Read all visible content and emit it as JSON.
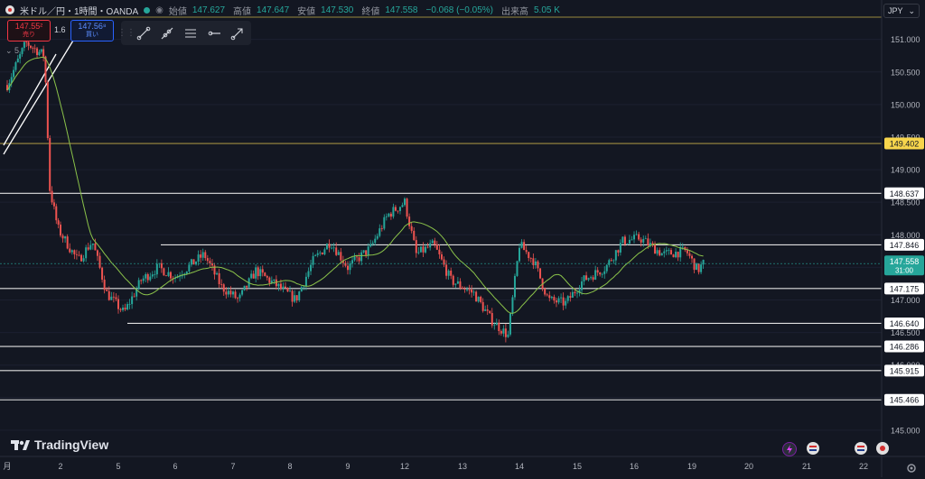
{
  "header": {
    "symbol": "米ドル／円・1時間・OANDA",
    "ohlc": [
      {
        "label": "始値",
        "value": "147.627"
      },
      {
        "label": "高値",
        "value": "147.647"
      },
      {
        "label": "安値",
        "value": "147.530"
      },
      {
        "label": "終値",
        "value": "147.558"
      },
      {
        "label": "",
        "value": "−0.068 (−0.05%)"
      },
      {
        "label": "出来高",
        "value": "5.05 K"
      }
    ]
  },
  "trade": {
    "sell_price": "147.55²",
    "sell_label": "売り",
    "spread": "1.6",
    "buy_price": "147.56⁸",
    "buy_label": "買い"
  },
  "ma_legend": "⌄ 5",
  "drawing_toolbar": {
    "tools": [
      "trend-line-icon",
      "extended-line-icon",
      "parallel-channel-icon",
      "horizontal-ray-icon",
      "arrow-line-icon"
    ]
  },
  "currency": "JPY",
  "brand": "TradingView",
  "colors": {
    "background": "#131722",
    "up": "#26a69a",
    "down": "#ef5350",
    "ma": "#8bc34a",
    "level_line": "#e0e0e0",
    "yellow_line": "#c9b24a",
    "current_price_bg": "#26a69a"
  },
  "chart_data": {
    "type": "candlestick",
    "symbol": "USDJPY",
    "timeframe": "1H",
    "ylim": [
      144.68,
      151.3
    ],
    "y_ticks": [
      "151.000",
      "150.500",
      "150.000",
      "149.500",
      "149.000",
      "148.500",
      "148.000",
      "147.500",
      "147.000",
      "146.500",
      "146.000",
      "145.500",
      "145.000"
    ],
    "x_ticks": [
      "月",
      "2",
      "5",
      "6",
      "7",
      "8",
      "9",
      "12",
      "13",
      "14",
      "15",
      "16",
      "19",
      "20",
      "21",
      "22"
    ],
    "current_price": "147.558",
    "countdown": "31:00",
    "horizontal_levels": [
      {
        "price": 149.402,
        "label": "149.402",
        "style": "yellow"
      },
      {
        "price": 148.637,
        "label": "148.637",
        "style": "white"
      },
      {
        "price": 147.846,
        "label": "147.846",
        "style": "white"
      },
      {
        "price": 147.175,
        "label": "147.175",
        "style": "white"
      },
      {
        "price": 146.64,
        "label": "146.640",
        "style": "white"
      },
      {
        "price": 146.286,
        "label": "146.286",
        "style": "white"
      },
      {
        "price": 145.915,
        "label": "145.915",
        "style": "white"
      },
      {
        "price": 145.466,
        "label": "145.466",
        "style": "white"
      }
    ],
    "anchors": [
      {
        "day": 0.0,
        "close": 150.3
      },
      {
        "day": 0.35,
        "close": 150.95
      },
      {
        "day": 0.7,
        "close": 150.75
      },
      {
        "day": 0.8,
        "close": 148.7
      },
      {
        "day": 0.95,
        "close": 148.1
      },
      {
        "day": 1.3,
        "close": 147.6
      },
      {
        "day": 1.55,
        "close": 147.9
      },
      {
        "day": 1.8,
        "close": 147.1
      },
      {
        "day": 2.1,
        "close": 146.8
      },
      {
        "day": 2.4,
        "close": 147.3
      },
      {
        "day": 2.7,
        "close": 147.5
      },
      {
        "day": 3.0,
        "close": 147.35
      },
      {
        "day": 3.5,
        "close": 147.7
      },
      {
        "day": 3.8,
        "close": 147.2
      },
      {
        "day": 4.1,
        "close": 147.0
      },
      {
        "day": 4.4,
        "close": 147.45
      },
      {
        "day": 4.8,
        "close": 147.2
      },
      {
        "day": 5.1,
        "close": 147.0
      },
      {
        "day": 5.4,
        "close": 147.6
      },
      {
        "day": 5.7,
        "close": 147.9
      },
      {
        "day": 6.0,
        "close": 147.5
      },
      {
        "day": 6.4,
        "close": 147.8
      },
      {
        "day": 6.7,
        "close": 148.3
      },
      {
        "day": 7.0,
        "close": 148.5
      },
      {
        "day": 7.2,
        "close": 147.7
      },
      {
        "day": 7.5,
        "close": 147.85
      },
      {
        "day": 7.8,
        "close": 147.3
      },
      {
        "day": 8.2,
        "close": 147.1
      },
      {
        "day": 8.5,
        "close": 146.7
      },
      {
        "day": 8.8,
        "close": 146.45
      },
      {
        "day": 9.0,
        "close": 147.85
      },
      {
        "day": 9.25,
        "close": 147.6
      },
      {
        "day": 9.5,
        "close": 147.0
      },
      {
        "day": 9.8,
        "close": 146.95
      },
      {
        "day": 10.1,
        "close": 147.3
      },
      {
        "day": 10.5,
        "close": 147.5
      },
      {
        "day": 10.8,
        "close": 147.9
      },
      {
        "day": 11.1,
        "close": 147.95
      },
      {
        "day": 11.5,
        "close": 147.7
      },
      {
        "day": 11.9,
        "close": 147.75
      },
      {
        "day": 12.1,
        "close": 147.45
      },
      {
        "day": 12.2,
        "close": 147.56
      }
    ],
    "moving_average_period": 20
  }
}
